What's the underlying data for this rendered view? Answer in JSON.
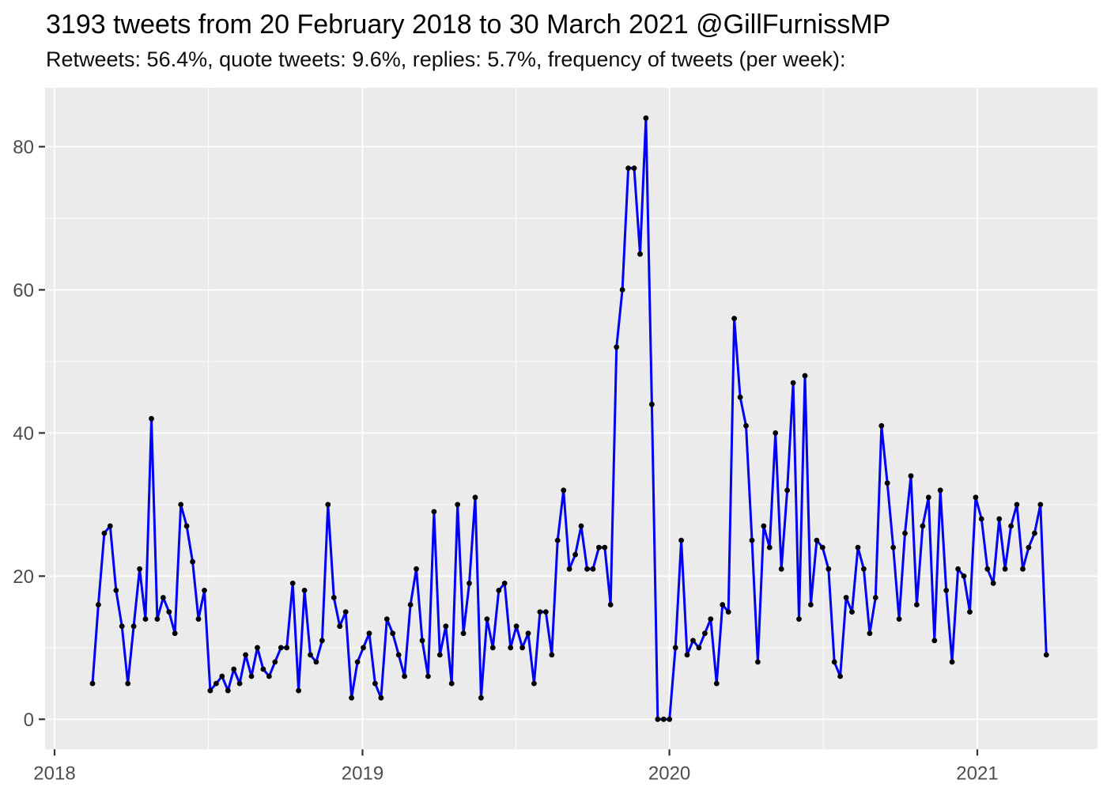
{
  "chart_data": {
    "type": "line",
    "title": "3193 tweets from 20 February 2018 to 30 March 2021 @GillFurnissMP",
    "subtitle": "Retweets: 56.4%, quote tweets: 9.6%, replies: 5.7%, frequency of tweets (per week):",
    "xlabel": "",
    "ylabel": "",
    "ylim": [
      0,
      84
    ],
    "grid": true,
    "legend": false,
    "x_axis": {
      "tick_labels": [
        "2018",
        "2019",
        "2020",
        "2021"
      ],
      "unit": "week"
    },
    "y_axis": {
      "tick_labels": [
        "0",
        "20",
        "40",
        "60",
        "80"
      ],
      "minor_ticks": [
        10,
        30,
        50,
        70
      ]
    },
    "series": [
      {
        "name": "tweets-per-week",
        "values": [
          5,
          16,
          26,
          27,
          18,
          13,
          5,
          13,
          21,
          14,
          42,
          14,
          17,
          15,
          12,
          30,
          27,
          22,
          14,
          18,
          4,
          5,
          6,
          4,
          7,
          5,
          9,
          6,
          10,
          7,
          6,
          8,
          10,
          10,
          19,
          4,
          18,
          9,
          8,
          11,
          30,
          17,
          13,
          15,
          3,
          8,
          10,
          12,
          5,
          3,
          14,
          12,
          9,
          6,
          16,
          21,
          11,
          6,
          29,
          9,
          13,
          5,
          30,
          12,
          19,
          31,
          3,
          14,
          10,
          18,
          19,
          10,
          13,
          10,
          12,
          5,
          15,
          15,
          9,
          25,
          32,
          21,
          23,
          27,
          21,
          21,
          24,
          24,
          16,
          52,
          60,
          77,
          77,
          65,
          84,
          44,
          0,
          0,
          0,
          10,
          25,
          9,
          11,
          10,
          12,
          14,
          5,
          16,
          15,
          56,
          45,
          41,
          25,
          8,
          27,
          24,
          40,
          21,
          32,
          47,
          14,
          48,
          16,
          25,
          24,
          21,
          8,
          6,
          17,
          15,
          24,
          21,
          12,
          17,
          41,
          33,
          24,
          14,
          26,
          34,
          16,
          27,
          31,
          11,
          32,
          18,
          8,
          21,
          20,
          15,
          31,
          28,
          21,
          19,
          28,
          21,
          27,
          30,
          21,
          24,
          26,
          30,
          9
        ]
      }
    ],
    "colors": {
      "line": "#0000F5",
      "point": "#000000",
      "panel_background": "#EBEBEB",
      "gridline": "#FFFFFF",
      "axis_text": "#4D4D4D",
      "tick_mark": "#333333",
      "title_text": "#000000"
    }
  }
}
